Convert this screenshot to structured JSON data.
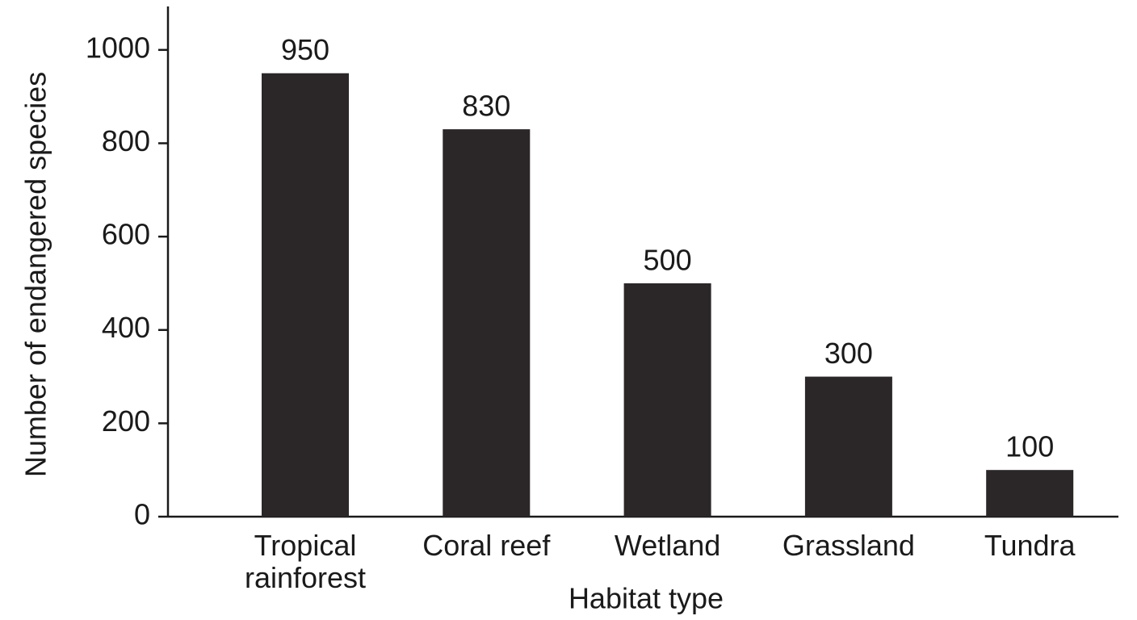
{
  "chart_data": {
    "type": "bar",
    "x_label": "Habitat type",
    "y_label": "Number of endangered species",
    "categories": [
      "Tropical rainforest",
      "Coral reef",
      "Wetland",
      "Grassland",
      "Tundra"
    ],
    "values": [
      950,
      830,
      500,
      300,
      100
    ],
    "color": "#2b2627",
    "ylim": [
      0,
      1100
    ],
    "yticks": [
      0,
      200,
      400,
      600,
      800,
      1000
    ],
    "grid": false
  }
}
